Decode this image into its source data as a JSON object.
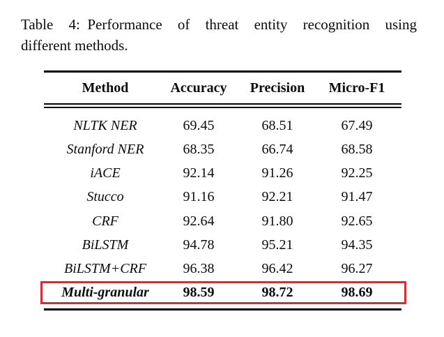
{
  "caption": {
    "line1": "Table 4: Performance of threat entity recognition using",
    "line2": "different methods."
  },
  "table": {
    "columns": [
      "Method",
      "Accuracy",
      "Precision",
      "Micro-F1"
    ],
    "rows": [
      {
        "method": "NLTK NER",
        "accuracy": "69.45",
        "precision": "68.51",
        "micro_f1": "67.49",
        "highlight": false
      },
      {
        "method": "Stanford NER",
        "accuracy": "68.35",
        "precision": "66.74",
        "micro_f1": "68.58",
        "highlight": false
      },
      {
        "method": "iACE",
        "accuracy": "92.14",
        "precision": "91.26",
        "micro_f1": "92.25",
        "highlight": false
      },
      {
        "method": "Stucco",
        "accuracy": "91.16",
        "precision": "92.21",
        "micro_f1": "91.47",
        "highlight": false
      },
      {
        "method": "CRF",
        "accuracy": "92.64",
        "precision": "91.80",
        "micro_f1": "92.65",
        "highlight": false
      },
      {
        "method": "BiLSTM",
        "accuracy": "94.78",
        "precision": "95.21",
        "micro_f1": "94.35",
        "highlight": false
      },
      {
        "method": "BiLSTM+CRF",
        "accuracy": "96.38",
        "precision": "96.42",
        "micro_f1": "96.27",
        "highlight": false
      },
      {
        "method": "Multi-granular",
        "accuracy": "98.59",
        "precision": "98.72",
        "micro_f1": "98.69",
        "highlight": true
      }
    ],
    "highlight_color": "#e5262b",
    "text_color": "#0c0c0c",
    "rule_color": "#000000"
  }
}
